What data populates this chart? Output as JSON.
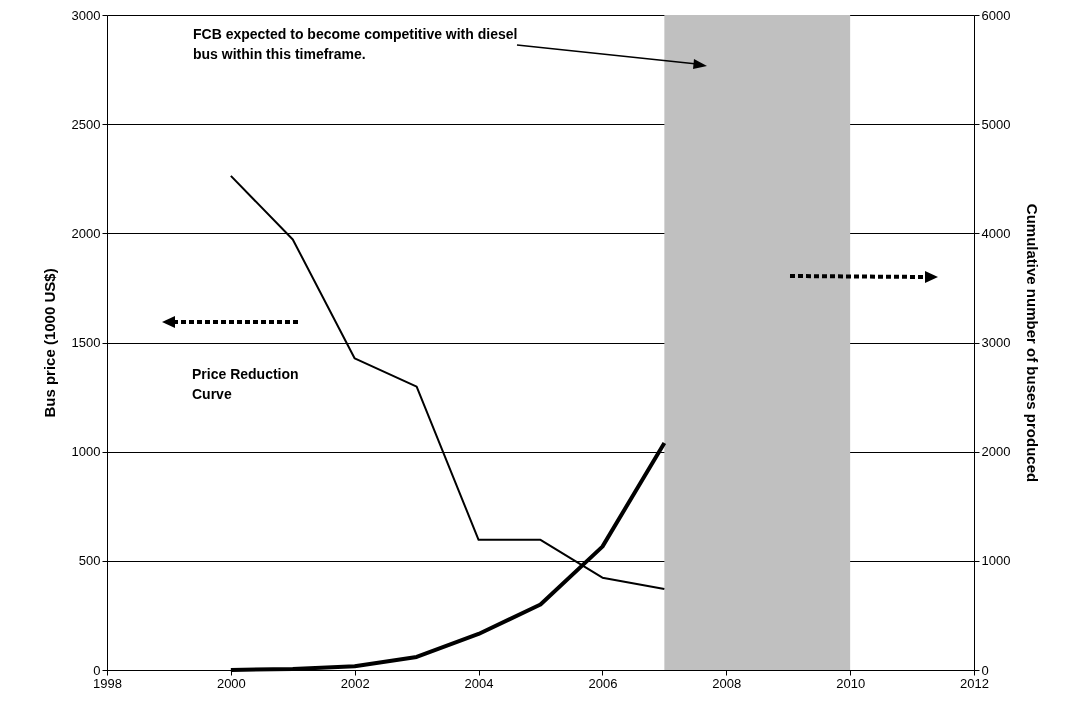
{
  "chart_data": {
    "type": "line",
    "x": [
      2000,
      2001,
      2002,
      2003,
      2004,
      2005,
      2006,
      2007
    ],
    "series": [
      {
        "color": "#000000",
        "values": [
          2263,
          1972,
          1427,
          1298,
          596,
          596,
          423,
          371
        ]
      },
      {
        "color": "#000000",
        "axis": "y2",
        "values": [
          0,
          10,
          35,
          120,
          330,
          600,
          1130,
          2080
        ]
      }
    ],
    "xlim": [
      1998,
      2012
    ],
    "xticks": [
      1998,
      2000,
      2002,
      2004,
      2006,
      2008,
      2010,
      2012
    ],
    "ylim": [
      0,
      3000
    ],
    "yticks": [
      0,
      500,
      1000,
      1500,
      2000,
      2500,
      3000
    ],
    "y2lim": [
      0,
      6000
    ],
    "y2ticks": [
      0,
      1000,
      2000,
      3000,
      4000,
      5000,
      6000
    ],
    "ylabel": "Bus price (1000 US$)",
    "y2label": "Cumulative number of buses produced",
    "bands": [
      {
        "axis": "x",
        "from": 2007,
        "to": 2010,
        "color": "#c0c0c0"
      }
    ],
    "annotations": [
      "FCB expected to become competitive with diesel bus within this timeframe.",
      "Price Reduction Curve"
    ],
    "grid": "y",
    "marker": "none",
    "line_style": "solid"
  }
}
